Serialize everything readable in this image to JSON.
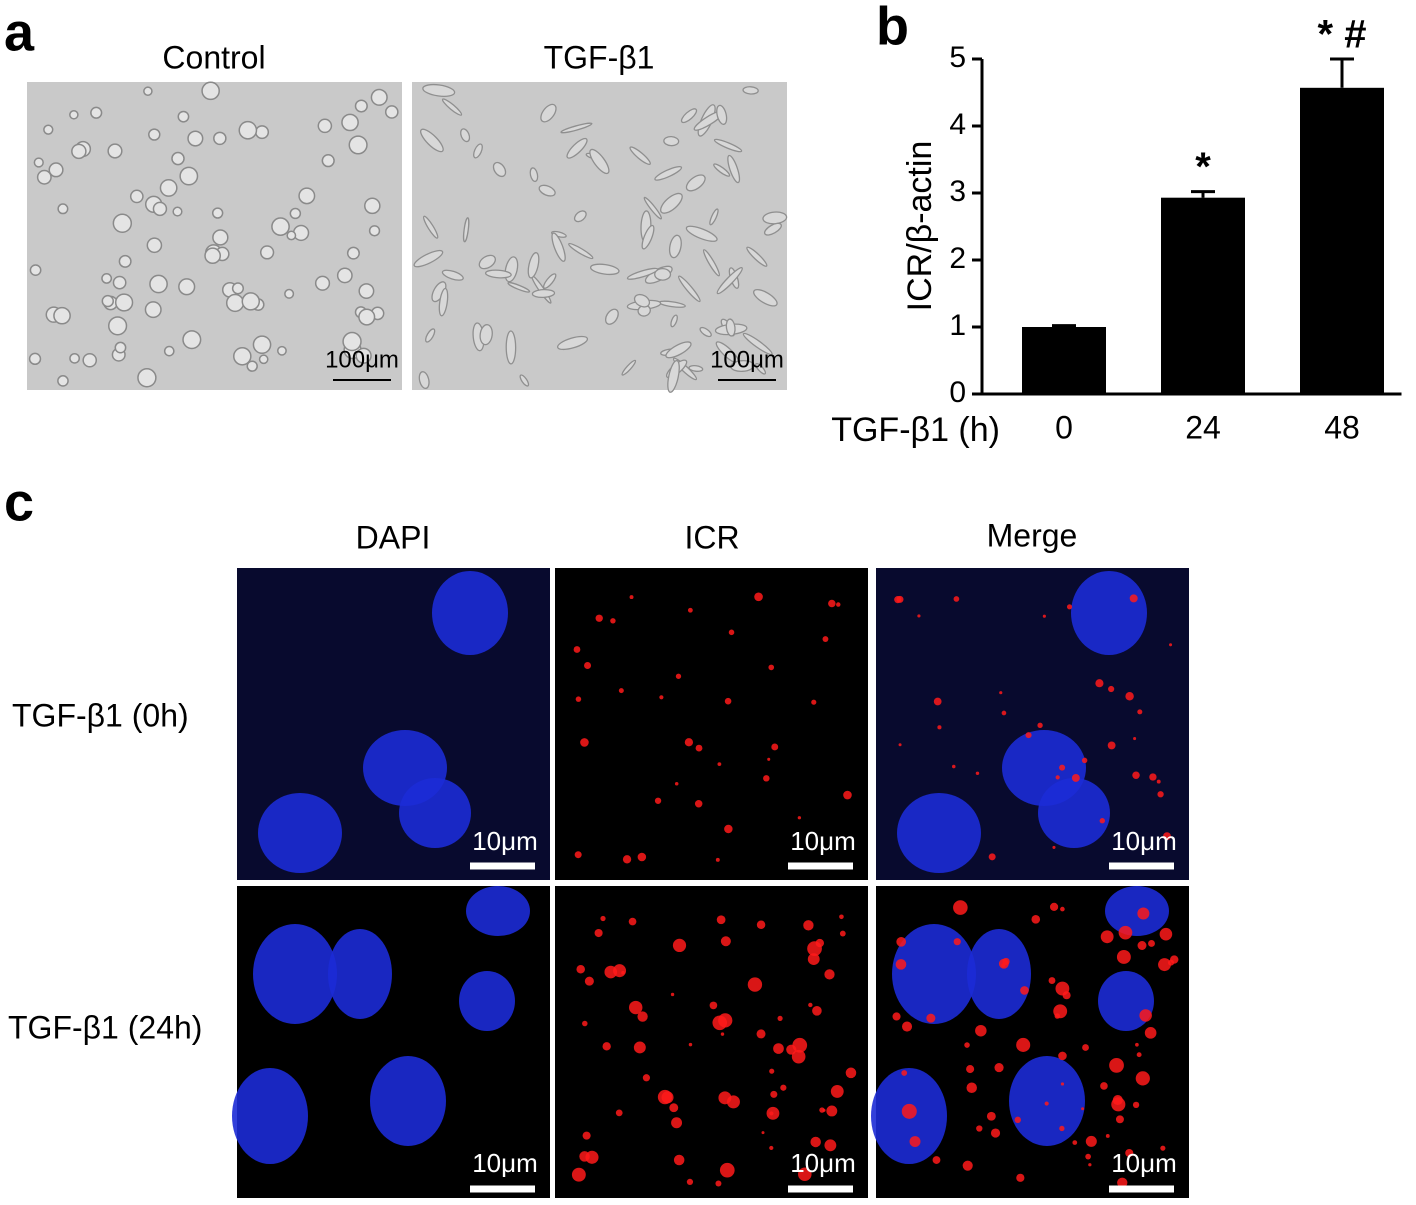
{
  "panel_a": {
    "label": "a",
    "images": [
      {
        "title": "Control",
        "scale_bar": "100μm"
      },
      {
        "title": "TGF-β1",
        "scale_bar": "100μm"
      }
    ]
  },
  "chart_data": {
    "type": "bar",
    "panel_label": "b",
    "ylabel": "ICR/β-actin",
    "xlabel": "TGF-β1 (h)",
    "categories": [
      "0",
      "24",
      "48"
    ],
    "values": [
      1.0,
      2.93,
      4.57
    ],
    "errors": [
      0.02,
      0.09,
      0.43
    ],
    "significance": [
      null,
      "*",
      "* #"
    ],
    "color": "#000000",
    "ylim": [
      0,
      5
    ],
    "yticks": [
      0,
      1,
      2,
      3,
      4,
      5
    ]
  },
  "panel_c": {
    "label": "c",
    "columns": [
      "DAPI",
      "ICR",
      "Merge"
    ],
    "rows": [
      "TGF-β1 (0h)",
      "TGF-β1 (24h)"
    ],
    "scale_bar": "10μm"
  }
}
